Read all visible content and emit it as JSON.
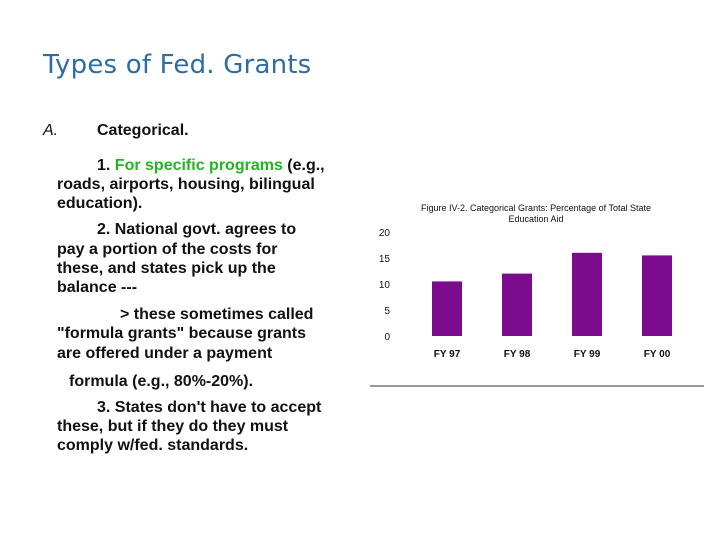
{
  "slide": {
    "title": "Types of Fed. Grants",
    "item_marker": "A.",
    "item_heading": "Categorical.",
    "point1_prefix": "1. ",
    "point1_highlight": "For specific programs",
    "point1_rest": " (e.g.,",
    "point1_line2": "roads, airports, housing, bilingual",
    "point1_line3": "education).",
    "point2_line1": "2. National govt. agrees to",
    "point2_line2": "pay a portion of the costs for",
    "point2_line3": "these, and states pick up the",
    "point2_line4": "balance ---",
    "point2_line5": "> these sometimes called",
    "point2_line6": "\"formula grants\" because grants",
    "point2_line7": "are offered under a payment",
    "point2_line8": "formula (e.g., 80%-20%).",
    "point3_line1": "3. States don't have to accept",
    "point3_line2": "these, but if they do   they must",
    "point3_line3": "comply w/fed. standards.",
    "colors": {
      "title": "#2e6da4",
      "highlight": "#22b522",
      "bar": "#7b0c8e"
    }
  },
  "chart_data": {
    "type": "bar",
    "title_line1": "Figure IV-2.  Categorical Grants: Percentage of Total State",
    "title_line2": "Education Aid",
    "categories": [
      "FY 97",
      "FY 98",
      "FY 99",
      "FY 00"
    ],
    "values": [
      10.5,
      12,
      16,
      15.5
    ],
    "yticks": [
      "0",
      "5",
      "10",
      "15",
      "20"
    ],
    "ylim": [
      0,
      20
    ],
    "xlabel": "",
    "ylabel": "",
    "grid": false,
    "legend": "none"
  }
}
